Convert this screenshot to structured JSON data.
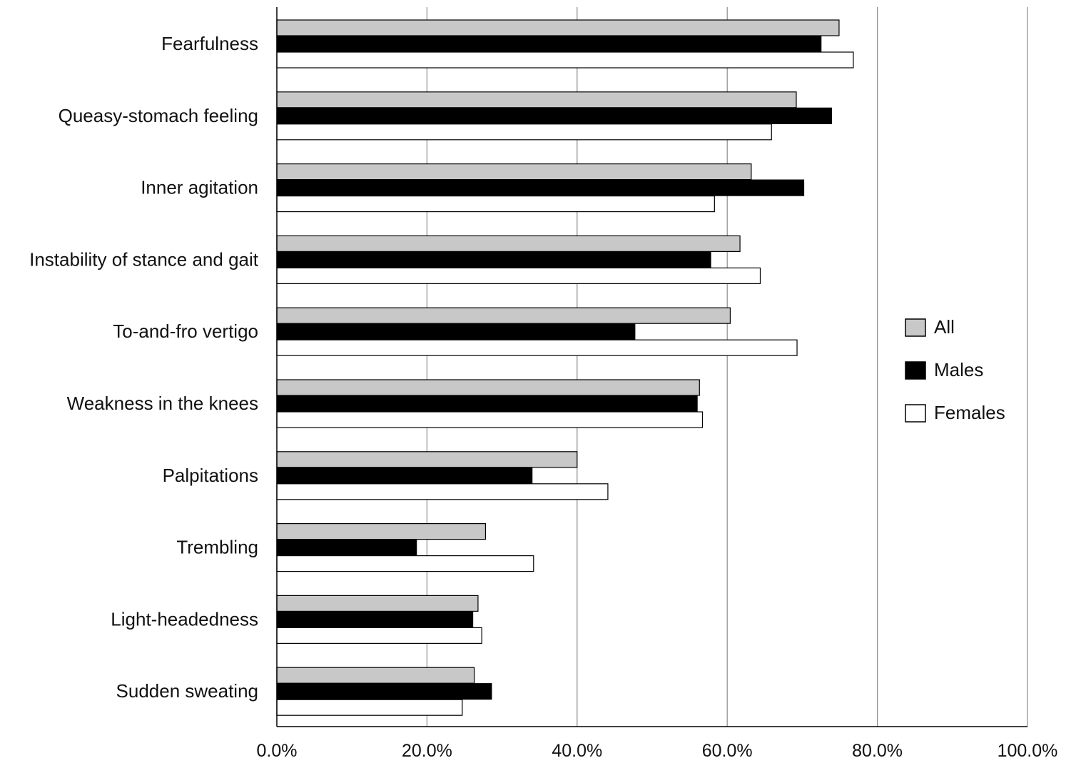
{
  "chart_data": {
    "type": "bar",
    "orientation": "horizontal",
    "categories": [
      "Fearfulness",
      "Queasy-stomach feeling",
      "Inner agitation",
      "Instability of stance and gait",
      "To-and-fro vertigo",
      "Weakness in the knees",
      "Palpitations",
      "Trembling",
      "Light-headedness",
      "Sudden sweating"
    ],
    "series": [
      {
        "name": "All",
        "color": "#c8c8c8",
        "values": [
          74.9,
          69.2,
          63.2,
          61.7,
          60.4,
          56.3,
          40.0,
          27.8,
          26.8,
          26.3
        ]
      },
      {
        "name": "Males",
        "color": "#000000",
        "values": [
          72.5,
          73.9,
          70.2,
          57.8,
          47.7,
          56.0,
          34.0,
          18.6,
          26.1,
          28.6
        ]
      },
      {
        "name": "Females",
        "color": "#ffffff",
        "values": [
          76.8,
          65.9,
          58.3,
          64.4,
          69.3,
          56.7,
          44.1,
          34.2,
          27.3,
          24.7
        ]
      }
    ],
    "xlim": [
      0,
      100
    ],
    "xticks": [
      "0.0%",
      "20.0%",
      "40.0%",
      "60.0%",
      "80.0%",
      "100.0%"
    ],
    "grid": "vertical",
    "legend_position": "right"
  }
}
